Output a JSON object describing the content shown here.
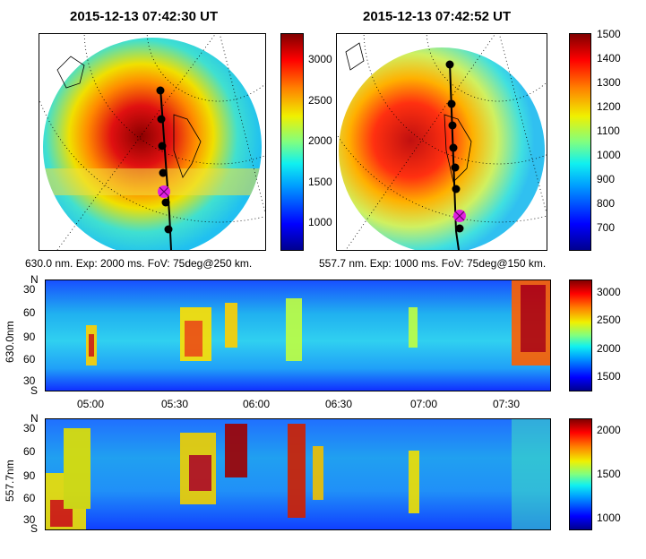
{
  "chart_data": [
    {
      "type": "heatmap",
      "title": "2015-12-13 07:42:30 UT",
      "xlabel": "630.0 nm. Exp: 2000 ms. FoV: 75deg@250 km.",
      "colorbar": {
        "range": [
          600,
          3300
        ],
        "ticks": [
          1000,
          1500,
          2000,
          2500,
          3000
        ]
      },
      "track_points": 6,
      "marker": "magenta-x"
    },
    {
      "type": "heatmap",
      "title": "2015-12-13 07:42:52 UT",
      "xlabel": "557.7 nm. Exp: 1000 ms. FoV: 75deg@150 km.",
      "colorbar": {
        "range": [
          620,
          1500
        ],
        "ticks": [
          700,
          800,
          900,
          1000,
          1100,
          1200,
          1300,
          1400,
          1500
        ]
      },
      "track_points": 7,
      "marker": "magenta-x"
    },
    {
      "type": "heatmap",
      "ylabel": "630.0nm",
      "yticks": [
        "S",
        "30",
        "60",
        "90",
        "60",
        "30",
        "N"
      ],
      "xticks": [
        "05:00",
        "05:30",
        "06:00",
        "06:30",
        "07:00",
        "07:30"
      ],
      "colorbar": {
        "range": [
          1200,
          3300
        ],
        "ticks": [
          1500,
          2000,
          2500,
          3000
        ]
      }
    },
    {
      "type": "heatmap",
      "ylabel": "557.7nm",
      "yticks": [
        "S",
        "30",
        "60",
        "90",
        "60",
        "30",
        "N"
      ],
      "colorbar": {
        "range": [
          850,
          2100
        ],
        "ticks": [
          1000,
          1500,
          2000
        ]
      }
    }
  ],
  "titles": {
    "left": "2015-12-13 07:42:30 UT",
    "right": "2015-12-13 07:42:52 UT"
  },
  "captions": {
    "left": "630.0 nm. Exp: 2000 ms. FoV: 75deg@250 km.",
    "right": "557.7 nm. Exp: 1000 ms. FoV: 75deg@150 km."
  },
  "cb1": [
    "3000",
    "2500",
    "2000",
    "1500",
    "1000"
  ],
  "cb2": [
    "1500",
    "1400",
    "1300",
    "1200",
    "1100",
    "1000",
    "900",
    "800",
    "700"
  ],
  "cb3": [
    "3000",
    "2500",
    "2000",
    "1500"
  ],
  "cb4": [
    "2000",
    "1500",
    "1000"
  ],
  "kticks": [
    "N",
    "30",
    "60",
    "90",
    "60",
    "30",
    "S"
  ],
  "xticks": [
    "05:00",
    "05:30",
    "06:00",
    "06:30",
    "07:00",
    "07:30"
  ],
  "ylabels": {
    "top": "630.0nm",
    "bottom": "557.7nm"
  },
  "colors": {
    "marker": "#e020e0",
    "track": "#000000"
  }
}
